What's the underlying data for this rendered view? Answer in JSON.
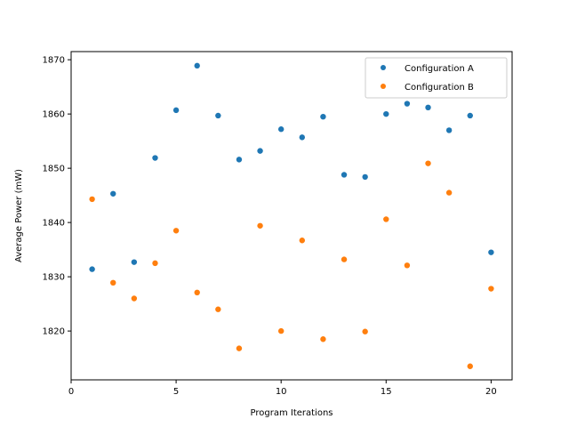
{
  "chart_data": {
    "type": "scatter",
    "title": "",
    "xlabel": "Program Iterations",
    "ylabel": "Average Power (mW)",
    "xlim": [
      -0.0,
      21.0
    ],
    "ylim": [
      1811.0,
      1871.5
    ],
    "xticks": [
      0,
      5,
      10,
      15,
      20
    ],
    "yticks": [
      1820,
      1830,
      1840,
      1850,
      1860,
      1870
    ],
    "legend_position": "top-right",
    "series": [
      {
        "name": "Configuration A",
        "color": "#1f77b4",
        "x": [
          1,
          2,
          3,
          4,
          5,
          6,
          7,
          8,
          9,
          10,
          11,
          12,
          13,
          14,
          15,
          16,
          17,
          18,
          19,
          20
        ],
        "y": [
          1831.4,
          1845.3,
          1832.7,
          1851.9,
          1860.7,
          1868.9,
          1859.7,
          1851.6,
          1853.2,
          1857.2,
          1855.7,
          1859.5,
          1848.8,
          1848.4,
          1860.0,
          1861.9,
          1861.2,
          1857.0,
          1859.7,
          1834.5
        ]
      },
      {
        "name": "Configuration B",
        "color": "#ff7f0e",
        "x": [
          1,
          2,
          3,
          4,
          5,
          6,
          7,
          8,
          9,
          10,
          11,
          12,
          13,
          14,
          15,
          16,
          17,
          18,
          19,
          20
        ],
        "y": [
          1844.3,
          1828.9,
          1826.0,
          1832.5,
          1838.5,
          1827.1,
          1824.0,
          1816.8,
          1839.4,
          1820.0,
          1836.7,
          1818.5,
          1833.2,
          1819.9,
          1840.6,
          1832.1,
          1850.9,
          1845.5,
          1813.5,
          1827.8
        ]
      }
    ]
  }
}
